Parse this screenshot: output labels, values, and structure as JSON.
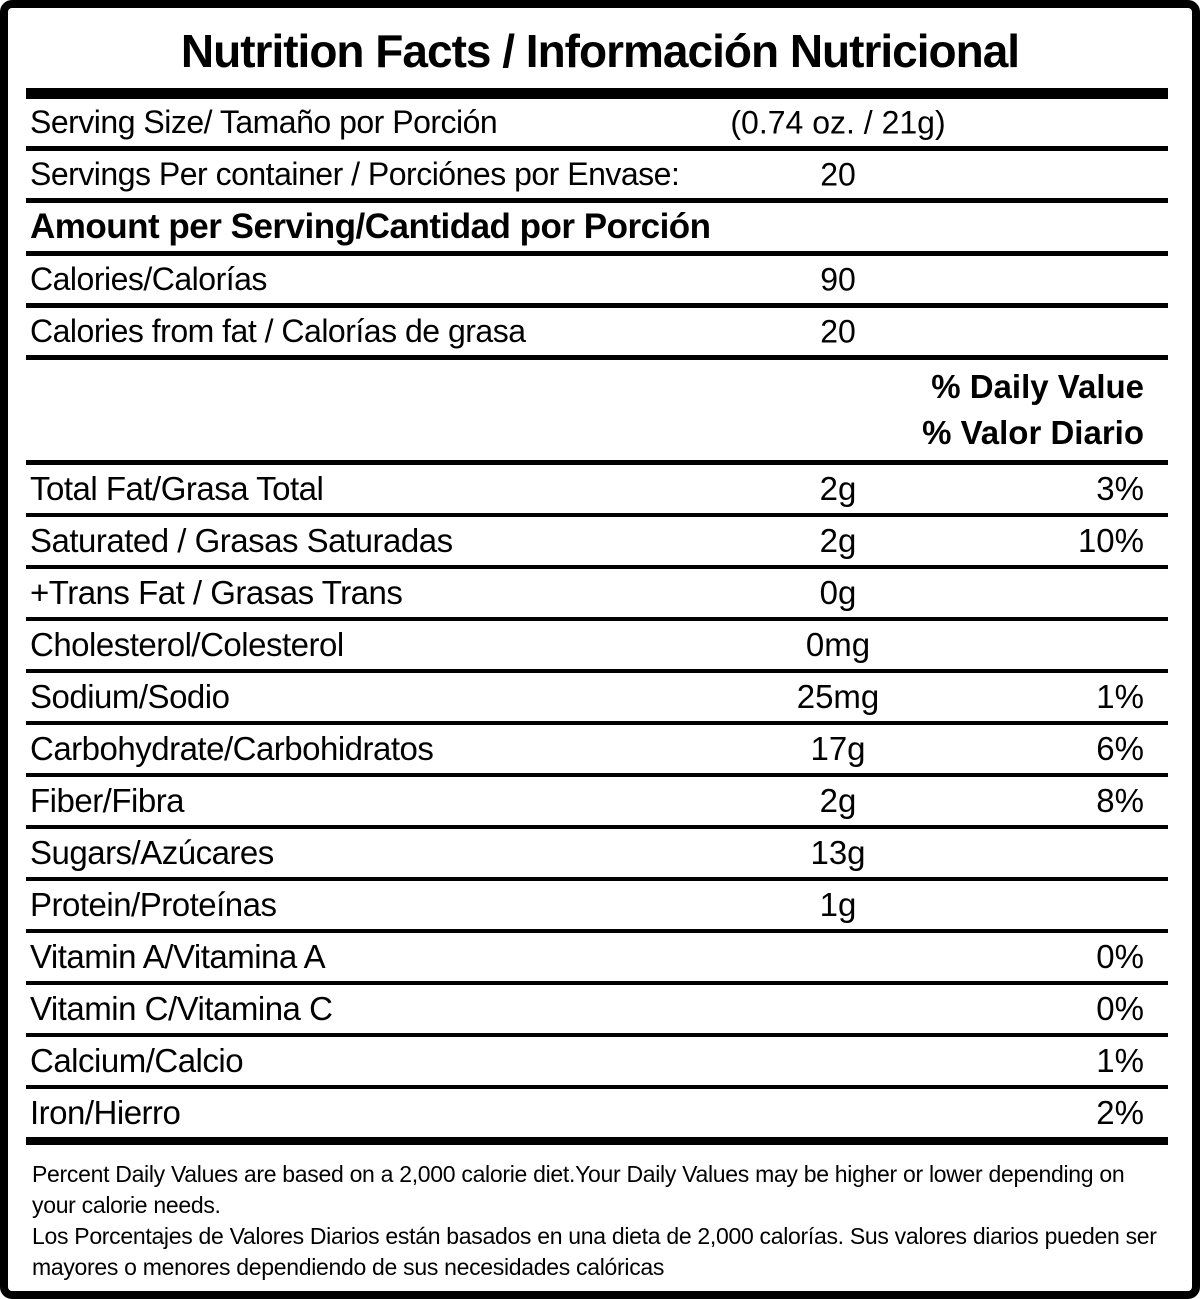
{
  "label": {
    "title": "Nutrition Facts / Información Nutricional",
    "serving_size": {
      "label": "Serving Size/ Tamaño por Porción",
      "value": "(0.74 oz. / 21g)"
    },
    "servings_per_container": {
      "label": "Servings Per container / Porciónes por Envase:",
      "value": "20"
    },
    "amount_per_serving_header": "Amount per Serving/Cantidad por Porción",
    "calories": {
      "label": "Calories/Calorías",
      "value": "90"
    },
    "calories_from_fat": {
      "label": "Calories from fat / Calorías de grasa",
      "value": "20"
    },
    "daily_value_header_en": "% Daily Value",
    "daily_value_header_es": "% Valor Diario",
    "nutrients": [
      {
        "label": "Total Fat/Grasa Total",
        "amount": "2g",
        "dv": "3%"
      },
      {
        "label": "Saturated / Grasas Saturadas",
        "amount": "2g",
        "dv": "10%"
      },
      {
        "label": "+Trans Fat / Grasas Trans",
        "amount": "0g",
        "dv": ""
      },
      {
        "label": "Cholesterol/Colesterol",
        "amount": "0mg",
        "dv": ""
      },
      {
        "label": "Sodium/Sodio",
        "amount": "25mg",
        "dv": "1%"
      },
      {
        "label": "Carbohydrate/Carbohidratos",
        "amount": "17g",
        "dv": "6%"
      },
      {
        "label": "Fiber/Fibra",
        "amount": "2g",
        "dv": "8%"
      },
      {
        "label": "Sugars/Azúcares",
        "amount": "13g",
        "dv": ""
      },
      {
        "label": "Protein/Proteínas",
        "amount": "1g",
        "dv": ""
      },
      {
        "label": "Vitamin A/Vitamina A",
        "amount": "",
        "dv": "0%"
      },
      {
        "label": "Vitamin C/Vitamina C",
        "amount": "",
        "dv": "0%"
      },
      {
        "label": "Calcium/Calcio",
        "amount": "",
        "dv": "1%"
      },
      {
        "label": "Iron/Hierro",
        "amount": "",
        "dv": "2%"
      }
    ],
    "footnote_en": "Percent Daily Values are based on a 2,000 calorie diet.Your Daily Values may be higher or lower depending on your calorie needs.",
    "footnote_es": "Los Porcentajes de Valores Diarios están basados en una dieta de 2,000 calorías. Sus valores diarios pueden ser mayores o menores dependiendo de sus necesidades calóricas",
    "colors": {
      "text": "#000000",
      "background": "#ffffff"
    }
  }
}
